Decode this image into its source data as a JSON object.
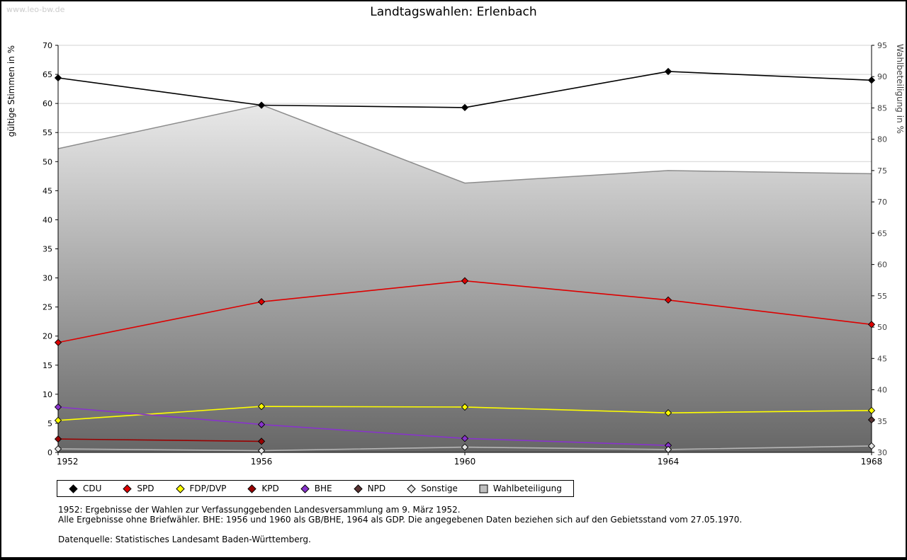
{
  "watermark": "www.leo-bw.de",
  "footnotes": [
    "1952: Ergebnisse der Wahlen zur Verfassunggebenden Landesversammlung am 9. März 1952.",
    "Alle Ergebnisse ohne Briefwähler. BHE: 1956 und 1960 als GB/BHE, 1964 als GDP. Die angegebenen Daten beziehen sich auf den Gebietsstand vom 27.05.1970.",
    "Datenquelle: Statistisches Landesamt Baden-Württemberg."
  ],
  "chart_data": {
    "type": "line",
    "title": "Landtagswahlen: Erlenbach",
    "x": [
      "1952",
      "1956",
      "1960",
      "1964",
      "1968"
    ],
    "left_axis": {
      "label": "gültige Stimmen in %",
      "min": 0,
      "max": 70,
      "tick_step": 5
    },
    "right_axis": {
      "label": "Wahlbeteiligung in %",
      "min": 30,
      "max": 95,
      "tick_step": 5
    },
    "grid": "horizontal",
    "legend_position": "bottom",
    "area_series": {
      "name": "Wahlbeteiligung",
      "axis": "right",
      "values": [
        78.5,
        85.5,
        73,
        75,
        74.5
      ],
      "fill_top": "#ffffff",
      "fill_bottom": "#666666",
      "edge_color": "#8c8c8c",
      "legend_swatch": "#bfbfbf"
    },
    "series": [
      {
        "name": "CDU",
        "color": "#000000",
        "values": [
          64.4,
          59.7,
          59.3,
          65.5,
          64.0
        ]
      },
      {
        "name": "SPD",
        "color": "#dd0000",
        "values": [
          18.9,
          25.9,
          29.5,
          26.2,
          22.0
        ]
      },
      {
        "name": "FDP/DVP",
        "color": "#ffff00",
        "values": [
          5.5,
          7.9,
          7.8,
          6.8,
          7.2
        ]
      },
      {
        "name": "KPD",
        "color": "#990000",
        "values": [
          2.3,
          1.9,
          null,
          null,
          null
        ]
      },
      {
        "name": "BHE",
        "color": "#8833cc",
        "values": [
          7.8,
          4.8,
          2.4,
          1.2,
          null
        ]
      },
      {
        "name": "NPD",
        "color": "#5a3333",
        "values": [
          null,
          null,
          null,
          null,
          5.6
        ]
      },
      {
        "name": "Sonstige",
        "color": "#e2e2e2",
        "line": "#b5b5b5",
        "values": [
          0.6,
          0.3,
          0.9,
          0.5,
          1.1
        ]
      }
    ]
  }
}
